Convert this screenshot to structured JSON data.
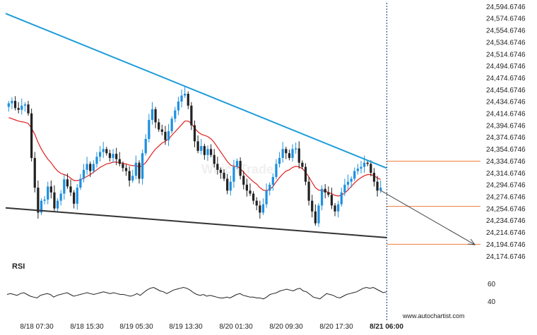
{
  "chart_data": [
    {
      "type": "candlestick",
      "title": "",
      "ylim": [
        24166.6746,
        24598.6746
      ],
      "y_ticks": [
        "24,594.6746",
        "24,574.6746",
        "24,554.6746",
        "24,534.6746",
        "24,514.6746",
        "24,494.6746",
        "24,474.6746",
        "24,454.6746",
        "24,434.6746",
        "24,414.6746",
        "24,394.6746",
        "24,374.6746",
        "24,354.6746",
        "24,334.6746",
        "24,314.6746",
        "24,294.6746",
        "24,274.6746",
        "24,254.6746",
        "24,234.6746",
        "24,214.6746",
        "24,194.6746",
        "24,174.6746"
      ],
      "x_ticks": [
        "8/18 07:30",
        "8/18 15:30",
        "8/19 05:30",
        "8/19 13:30",
        "8/20 01:30",
        "8/20 09:30",
        "8/20 17:30",
        "8/21 06:00"
      ],
      "x_tick_bold_last": true,
      "grid": false,
      "candle_colors": {
        "up": "#1e90e0",
        "down": "#222222"
      },
      "moving_average_color": "#e02020",
      "closes": [
        24432,
        24436,
        24424,
        24421,
        24428,
        24430,
        24415,
        24340,
        24290,
        24248,
        24268,
        24270,
        24292,
        24282,
        24255,
        24268,
        24280,
        24304,
        24292,
        24282,
        24263,
        24290,
        24305,
        24320,
        24330,
        24318,
        24330,
        24342,
        24350,
        24355,
        24348,
        24340,
        24347,
        24338,
        24330,
        24323,
        24318,
        24302,
        24310,
        24332,
        24305,
        24348,
        24372,
        24404,
        24422,
        24400,
        24388,
        24384,
        24370,
        24385,
        24406,
        24420,
        24435,
        24445,
        24448,
        24428,
        24395,
        24368,
        24352,
        24360,
        24345,
        24355,
        24345,
        24330,
        24320,
        24315,
        24305,
        24285,
        24300,
        24325,
        24335,
        24310,
        24295,
        24285,
        24280,
        24268,
        24260,
        24248,
        24262,
        24285,
        24295,
        24308,
        24330,
        24340,
        24355,
        24348,
        24340,
        24355,
        24356,
        24332,
        24325,
        24300,
        24268,
        24250,
        24230,
        24260,
        24288,
        24282,
        24278,
        24260,
        24250,
        24262,
        24282,
        24295,
        24300,
        24305,
        24318,
        24322,
        24325,
        24332,
        24330,
        24315,
        24300,
        24285,
        24290
      ],
      "moving_average": [
        24408,
        24406,
        24404,
        24402,
        24401,
        24400,
        24398,
        24390,
        24380,
        24366,
        24355,
        24346,
        24338,
        24332,
        24324,
        24318,
        24314,
        24312,
        24310,
        24306,
        24302,
        24302,
        24303,
        24306,
        24309,
        24312,
        24316,
        24320,
        24324,
        24327,
        24330,
        24331,
        24333,
        24333,
        24332,
        24331,
        24330,
        24328,
        24327,
        24327,
        24325,
        24327,
        24332,
        24340,
        24348,
        24355,
        24360,
        24365,
        24368,
        24372,
        24378,
        24384,
        24390,
        24396,
        24402,
        24402,
        24398,
        24390,
        24384,
        24380,
        24378,
        24376,
        24372,
        24366,
        24358,
        24350,
        24342,
        24334,
        24328,
        24326,
        24326,
        24322,
        24316,
        24310,
        24305,
        24300,
        24296,
        24290,
        24286,
        24285,
        24287,
        24292,
        24300,
        24307,
        24313,
        24318,
        24320,
        24324,
        24326,
        24325,
        24322,
        24316,
        24308,
        24299,
        24290,
        24286,
        24285,
        24284,
        24282,
        24280,
        24277,
        24276,
        24277,
        24281,
        24286,
        24292,
        24298,
        24303,
        24307,
        24310,
        24312,
        24312,
        24310,
        24306,
        24304
      ],
      "pattern": {
        "type": "falling wedge",
        "resistance_color": "#1e9cd8",
        "support_color": "#333333",
        "resistance_start": 24583,
        "resistance_end": 24323,
        "support_start": 24256,
        "support_end": 24206,
        "forecast_arrow_color": "#444444",
        "forecast_target": 24194,
        "level_line_color": "#f08040",
        "levels": [
          24334.6746,
          24258.6746,
          24194.6746
        ]
      },
      "last_time_marker": "8/21 06:00"
    },
    {
      "type": "line",
      "title": "RSI",
      "ylim": [
        30,
        70
      ],
      "y_ticks": [
        "60",
        "40"
      ],
      "values": [
        48,
        49,
        48,
        47,
        49,
        50,
        48,
        46,
        45,
        44,
        47,
        48,
        49,
        48,
        45,
        47,
        48,
        49,
        50,
        48,
        46,
        47,
        48,
        49,
        50,
        49,
        48,
        49,
        50,
        51,
        50,
        49,
        50,
        49,
        48,
        48,
        47,
        46,
        47,
        49,
        47,
        50,
        53,
        55,
        56,
        54,
        52,
        51,
        49,
        51,
        53,
        54,
        55,
        56,
        55,
        53,
        50,
        48,
        47,
        48,
        46,
        47,
        46,
        45,
        44,
        44,
        45,
        44,
        46,
        48,
        49,
        47,
        46,
        45,
        45,
        44,
        44,
        43,
        45,
        48,
        49,
        50,
        52,
        53,
        54,
        53,
        52,
        54,
        55,
        52,
        51,
        48,
        45,
        44,
        43,
        46,
        49,
        48,
        47,
        45,
        44,
        46,
        48,
        49,
        50,
        51,
        53,
        55,
        56,
        55,
        56,
        54,
        52,
        50,
        51
      ],
      "line_color": "#222222"
    }
  ],
  "watermark_text": "WhichTrade",
  "credit_text": "www.autochartist.com"
}
